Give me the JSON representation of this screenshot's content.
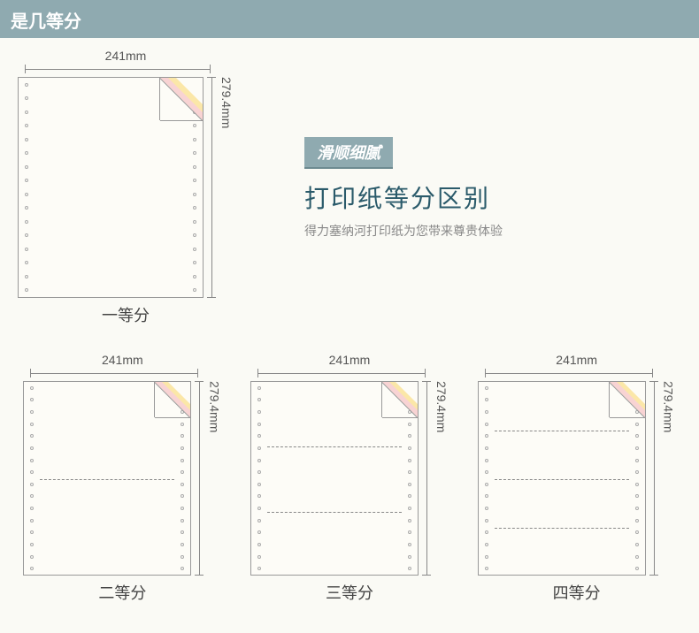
{
  "header": "是几等分",
  "badge": "滑顺细腻",
  "title": "打印纸等分区别",
  "subtitle": "得力塞纳河打印纸为您带来尊贵体验",
  "width_label": "241mm",
  "height_label": "279.4mm",
  "diagrams": {
    "main": {
      "caption": "一等分",
      "divisions": 1,
      "paper_w": 210,
      "paper_h": 250,
      "fold_size": 48
    },
    "small": [
      {
        "caption": "二等分",
        "divisions": 2
      },
      {
        "caption": "三等分",
        "divisions": 3
      },
      {
        "caption": "四等分",
        "divisions": 4
      }
    ],
    "small_paper_w": 190,
    "small_paper_h": 220,
    "small_fold_size": 40
  },
  "colors": {
    "accent": "#8faab0",
    "title_color": "#2a5a6a",
    "paper_bg": "#fdfcf7",
    "fold_colors": [
      "#f8d3d3",
      "#fbe7a8",
      "#fdfcf7"
    ],
    "page_bg": "#fafaf5",
    "dim_color": "#888"
  },
  "perf_holes": 16
}
